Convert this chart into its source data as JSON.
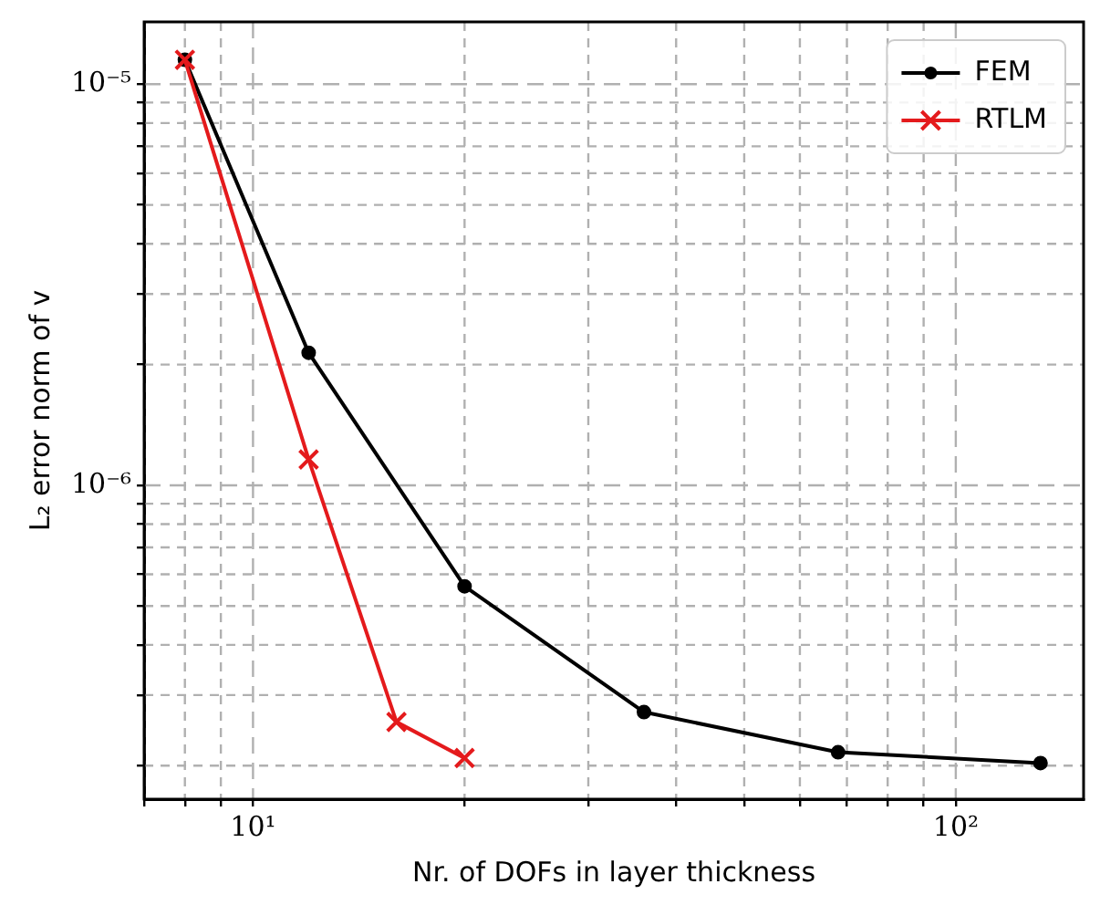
{
  "chart_data": {
    "type": "line",
    "xlabel": "Nr. of DOFs in layer thickness",
    "ylabel": "L₂ error norm of v",
    "log": "xy",
    "grid": true,
    "legend": "top right",
    "marker": "circle",
    "line_style": "solid",
    "xlim": [
      7,
      152
    ],
    "ylim": [
      1.65e-07,
      1.43e-05
    ],
    "xticks": [
      {
        "value": 7,
        "label": null
      },
      {
        "value": 8,
        "label": null
      },
      {
        "value": 9,
        "label": null
      },
      {
        "value": 10,
        "label": "10¹"
      },
      {
        "value": 20,
        "label": null
      },
      {
        "value": 30,
        "label": null
      },
      {
        "value": 40,
        "label": null
      },
      {
        "value": 50,
        "label": null
      },
      {
        "value": 60,
        "label": null
      },
      {
        "value": 70,
        "label": null
      },
      {
        "value": 80,
        "label": null
      },
      {
        "value": 90,
        "label": null
      },
      {
        "value": 100,
        "label": "10²"
      }
    ],
    "yticks": [
      {
        "value": 2e-07,
        "label": null
      },
      {
        "value": 3e-07,
        "label": null
      },
      {
        "value": 4e-07,
        "label": null
      },
      {
        "value": 5e-07,
        "label": null
      },
      {
        "value": 6e-07,
        "label": null
      },
      {
        "value": 7e-07,
        "label": null
      },
      {
        "value": 8e-07,
        "label": null
      },
      {
        "value": 9e-07,
        "label": null
      },
      {
        "value": 1e-06,
        "label": "10⁻⁶"
      },
      {
        "value": 2e-06,
        "label": null
      },
      {
        "value": 3e-06,
        "label": null
      },
      {
        "value": 4e-06,
        "label": null
      },
      {
        "value": 5e-06,
        "label": null
      },
      {
        "value": 6e-06,
        "label": null
      },
      {
        "value": 7e-06,
        "label": null
      },
      {
        "value": 8e-06,
        "label": null
      },
      {
        "value": 9e-06,
        "label": null
      },
      {
        "value": 1e-05,
        "label": "10⁻⁵"
      }
    ],
    "series": [
      {
        "name": "FEM",
        "color": "#000000",
        "x": [
          8,
          12,
          20,
          36,
          68,
          132
        ],
        "values": [
          1.15e-05,
          2.14e-06,
          5.6e-07,
          2.72e-07,
          2.16e-07,
          2.03e-07
        ]
      },
      {
        "name": "RTLM",
        "color": "#e41a1c",
        "marker": "cross",
        "x": [
          8,
          12,
          16,
          20
        ],
        "values": [
          1.15e-05,
          1.16e-06,
          2.57e-07,
          2.09e-07
        ]
      }
    ]
  }
}
